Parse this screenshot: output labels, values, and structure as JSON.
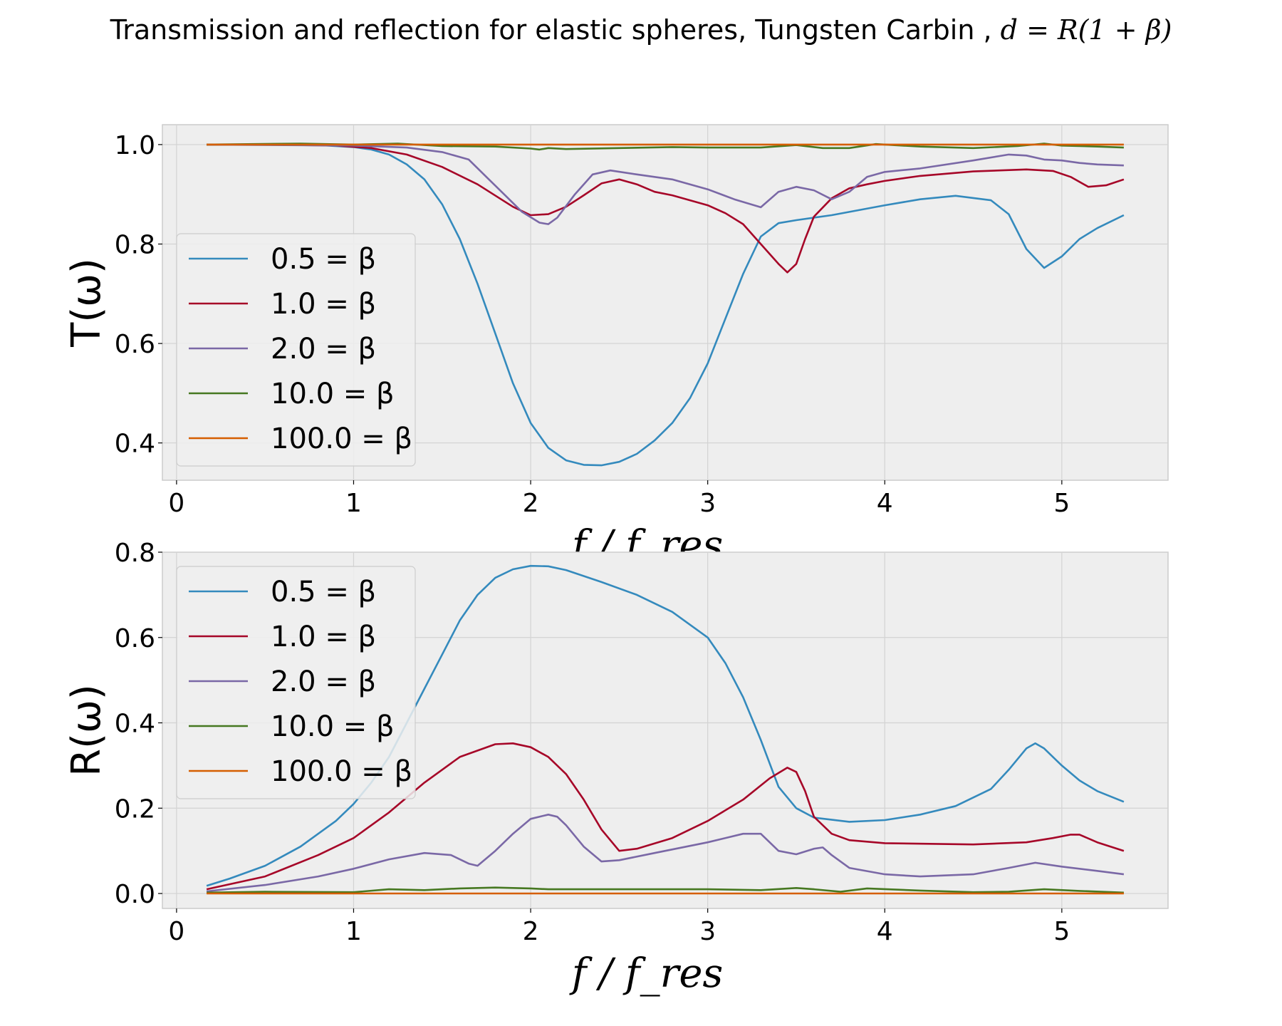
{
  "title": "Transmission and reflection for elastic spheres, Tungsten Carbin ,",
  "title_math": "d = R(1 + β)",
  "colors": {
    "background": "#ffffff",
    "axes_face": "#eeeeee",
    "grid": "#d3d3d3",
    "spine": "#cccccc"
  },
  "chart_data": [
    {
      "type": "line",
      "ylabel": "T(ω)",
      "xlabel": "f / f_res",
      "xlim": [
        -0.08,
        5.6
      ],
      "ylim": [
        0.325,
        1.04
      ],
      "xticks": [
        0,
        1,
        2,
        3,
        4,
        5
      ],
      "yticks": [
        0.4,
        0.6,
        0.8,
        1.0
      ],
      "ytick_labels": [
        "0.4",
        "0.6",
        "0.8",
        "1.0"
      ],
      "grid": true,
      "legend_position": "lower-left",
      "series": [
        {
          "name": "0.5",
          "legend_label": "0.5 = β",
          "color": "#348ABD",
          "x": [
            0.17,
            0.5,
            0.8,
            1.0,
            1.1,
            1.2,
            1.3,
            1.4,
            1.5,
            1.6,
            1.7,
            1.8,
            1.9,
            2.0,
            2.1,
            2.2,
            2.3,
            2.4,
            2.5,
            2.6,
            2.7,
            2.8,
            2.9,
            3.0,
            3.1,
            3.2,
            3.3,
            3.4,
            3.5,
            3.7,
            4.0,
            4.2,
            4.4,
            4.6,
            4.7,
            4.8,
            4.9,
            5.0,
            5.1,
            5.2,
            5.35
          ],
          "y": [
            1.0,
            1.0,
            0.999,
            0.995,
            0.99,
            0.98,
            0.96,
            0.93,
            0.88,
            0.81,
            0.72,
            0.62,
            0.52,
            0.44,
            0.39,
            0.365,
            0.356,
            0.355,
            0.362,
            0.378,
            0.405,
            0.44,
            0.49,
            0.56,
            0.65,
            0.74,
            0.815,
            0.842,
            0.848,
            0.858,
            0.878,
            0.89,
            0.897,
            0.888,
            0.86,
            0.79,
            0.752,
            0.775,
            0.81,
            0.832,
            0.858
          ]
        },
        {
          "name": "1.0",
          "legend_label": "1.0 = β",
          "color": "#A60628",
          "x": [
            0.17,
            0.5,
            0.9,
            1.1,
            1.3,
            1.5,
            1.7,
            1.9,
            2.0,
            2.1,
            2.2,
            2.3,
            2.4,
            2.5,
            2.6,
            2.7,
            2.8,
            3.0,
            3.1,
            3.2,
            3.3,
            3.4,
            3.45,
            3.5,
            3.55,
            3.6,
            3.7,
            3.8,
            3.9,
            4.0,
            4.2,
            4.5,
            4.8,
            4.95,
            5.05,
            5.15,
            5.25,
            5.35
          ],
          "y": [
            1.0,
            1.0,
            0.998,
            0.993,
            0.98,
            0.955,
            0.92,
            0.875,
            0.858,
            0.86,
            0.875,
            0.898,
            0.922,
            0.93,
            0.92,
            0.905,
            0.898,
            0.878,
            0.862,
            0.84,
            0.8,
            0.76,
            0.743,
            0.76,
            0.81,
            0.855,
            0.892,
            0.912,
            0.92,
            0.927,
            0.937,
            0.946,
            0.95,
            0.947,
            0.935,
            0.915,
            0.918,
            0.93
          ]
        },
        {
          "name": "2.0",
          "legend_label": "2.0 = β",
          "color": "#7A68A6",
          "x": [
            0.17,
            1.0,
            1.3,
            1.5,
            1.65,
            1.75,
            1.85,
            1.95,
            2.05,
            2.1,
            2.15,
            2.25,
            2.35,
            2.45,
            2.6,
            2.8,
            3.0,
            3.15,
            3.3,
            3.4,
            3.5,
            3.6,
            3.7,
            3.8,
            3.9,
            4.0,
            4.2,
            4.5,
            4.7,
            4.8,
            4.9,
            5.0,
            5.1,
            5.2,
            5.35
          ],
          "y": [
            1.0,
            0.998,
            0.994,
            0.985,
            0.97,
            0.935,
            0.9,
            0.865,
            0.843,
            0.84,
            0.853,
            0.9,
            0.94,
            0.948,
            0.94,
            0.93,
            0.91,
            0.89,
            0.874,
            0.905,
            0.915,
            0.908,
            0.89,
            0.905,
            0.935,
            0.945,
            0.952,
            0.968,
            0.98,
            0.978,
            0.97,
            0.968,
            0.963,
            0.96,
            0.958
          ]
        },
        {
          "name": "10.0",
          "legend_label": "10.0 = β",
          "color": "#467821",
          "x": [
            0.17,
            0.7,
            1.0,
            1.25,
            1.5,
            1.8,
            2.0,
            2.05,
            2.1,
            2.2,
            2.5,
            2.8,
            3.0,
            3.3,
            3.5,
            3.65,
            3.8,
            3.95,
            4.2,
            4.5,
            4.75,
            4.9,
            5.0,
            5.2,
            5.35
          ],
          "y": [
            1.0,
            1.002,
            1.0,
            1.002,
            0.997,
            0.996,
            0.992,
            0.99,
            0.993,
            0.991,
            0.993,
            0.995,
            0.994,
            0.994,
            0.999,
            0.993,
            0.993,
            1.001,
            0.996,
            0.993,
            0.997,
            1.002,
            0.998,
            0.996,
            0.994
          ]
        },
        {
          "name": "100.0",
          "legend_label": "100.0 = β",
          "color": "#D55E00",
          "x": [
            0.17,
            1.0,
            2.0,
            3.0,
            4.0,
            5.0,
            5.35
          ],
          "y": [
            1.0,
            1.0,
            1.0,
            1.0,
            1.0,
            1.0,
            1.0
          ]
        }
      ]
    },
    {
      "type": "line",
      "ylabel": "R(ω)",
      "xlabel": "f / f_res",
      "xlim": [
        -0.08,
        5.6
      ],
      "ylim": [
        -0.035,
        0.8
      ],
      "xticks": [
        0,
        1,
        2,
        3,
        4,
        5
      ],
      "yticks": [
        0.0,
        0.2,
        0.4,
        0.6,
        0.8
      ],
      "ytick_labels": [
        "0.0",
        "0.2",
        "0.4",
        "0.6",
        "0.8"
      ],
      "grid": true,
      "legend_position": "upper-left",
      "series": [
        {
          "name": "0.5",
          "legend_label": "0.5 = β",
          "color": "#348ABD",
          "x": [
            0.17,
            0.3,
            0.5,
            0.7,
            0.9,
            1.0,
            1.1,
            1.2,
            1.3,
            1.4,
            1.5,
            1.6,
            1.7,
            1.8,
            1.9,
            2.0,
            2.1,
            2.2,
            2.4,
            2.6,
            2.8,
            3.0,
            3.1,
            3.2,
            3.3,
            3.4,
            3.5,
            3.6,
            3.8,
            4.0,
            4.2,
            4.4,
            4.6,
            4.7,
            4.8,
            4.85,
            4.9,
            5.0,
            5.1,
            5.2,
            5.35
          ],
          "y": [
            0.018,
            0.035,
            0.065,
            0.11,
            0.17,
            0.21,
            0.26,
            0.32,
            0.4,
            0.48,
            0.56,
            0.64,
            0.7,
            0.74,
            0.76,
            0.768,
            0.767,
            0.758,
            0.73,
            0.7,
            0.66,
            0.6,
            0.54,
            0.46,
            0.36,
            0.25,
            0.2,
            0.178,
            0.168,
            0.172,
            0.185,
            0.205,
            0.245,
            0.29,
            0.34,
            0.352,
            0.34,
            0.3,
            0.265,
            0.24,
            0.215
          ]
        },
        {
          "name": "1.0",
          "legend_label": "1.0 = β",
          "color": "#A60628",
          "x": [
            0.17,
            0.5,
            0.8,
            1.0,
            1.2,
            1.4,
            1.6,
            1.8,
            1.9,
            2.0,
            2.1,
            2.2,
            2.3,
            2.4,
            2.5,
            2.6,
            2.8,
            3.0,
            3.2,
            3.35,
            3.45,
            3.5,
            3.55,
            3.6,
            3.7,
            3.8,
            4.0,
            4.5,
            4.8,
            4.95,
            5.05,
            5.1,
            5.2,
            5.35
          ],
          "y": [
            0.01,
            0.04,
            0.09,
            0.13,
            0.19,
            0.26,
            0.32,
            0.35,
            0.352,
            0.343,
            0.32,
            0.28,
            0.22,
            0.15,
            0.1,
            0.105,
            0.13,
            0.17,
            0.22,
            0.27,
            0.295,
            0.285,
            0.24,
            0.18,
            0.14,
            0.125,
            0.118,
            0.115,
            0.12,
            0.13,
            0.138,
            0.138,
            0.12,
            0.1
          ]
        },
        {
          "name": "2.0",
          "legend_label": "2.0 = β",
          "color": "#7A68A6",
          "x": [
            0.17,
            0.5,
            0.8,
            1.0,
            1.2,
            1.4,
            1.55,
            1.65,
            1.7,
            1.8,
            1.9,
            2.0,
            2.1,
            2.15,
            2.2,
            2.3,
            2.4,
            2.5,
            2.7,
            3.0,
            3.2,
            3.3,
            3.4,
            3.5,
            3.6,
            3.65,
            3.7,
            3.8,
            4.0,
            4.2,
            4.5,
            4.7,
            4.85,
            5.0,
            5.2,
            5.35
          ],
          "y": [
            0.005,
            0.02,
            0.04,
            0.058,
            0.08,
            0.095,
            0.09,
            0.07,
            0.065,
            0.1,
            0.14,
            0.175,
            0.185,
            0.18,
            0.16,
            0.11,
            0.075,
            0.078,
            0.095,
            0.12,
            0.14,
            0.14,
            0.1,
            0.092,
            0.105,
            0.108,
            0.09,
            0.06,
            0.045,
            0.04,
            0.045,
            0.06,
            0.072,
            0.063,
            0.053,
            0.045
          ]
        },
        {
          "name": "10.0",
          "legend_label": "10.0 = β",
          "color": "#467821",
          "x": [
            0.17,
            0.5,
            1.0,
            1.2,
            1.4,
            1.6,
            1.8,
            2.0,
            2.1,
            2.3,
            2.7,
            3.0,
            3.3,
            3.5,
            3.6,
            3.75,
            3.9,
            4.2,
            4.5,
            4.7,
            4.9,
            5.1,
            5.35
          ],
          "y": [
            0.002,
            0.004,
            0.003,
            0.01,
            0.008,
            0.012,
            0.014,
            0.012,
            0.01,
            0.01,
            0.01,
            0.01,
            0.008,
            0.013,
            0.01,
            0.004,
            0.012,
            0.007,
            0.003,
            0.004,
            0.01,
            0.006,
            0.002
          ]
        },
        {
          "name": "100.0",
          "legend_label": "100.0 = β",
          "color": "#D55E00",
          "x": [
            0.17,
            1.0,
            2.0,
            3.0,
            4.0,
            5.0,
            5.35
          ],
          "y": [
            0.0,
            0.0,
            0.0,
            0.0,
            0.0,
            0.0,
            0.0
          ]
        }
      ]
    }
  ]
}
